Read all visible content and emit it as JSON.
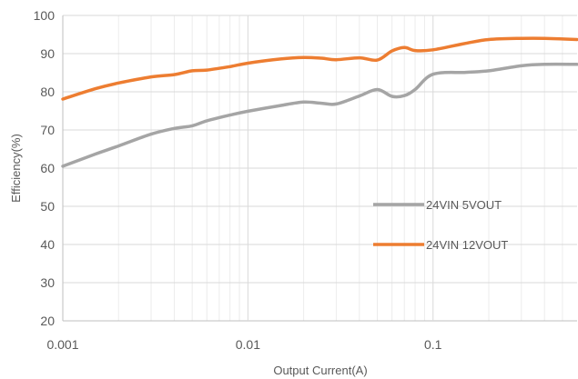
{
  "chart_data": {
    "type": "line",
    "xscale": "log",
    "xlim": [
      0.001,
      0.6
    ],
    "ylim": [
      20,
      100
    ],
    "xticks": [
      "0.001",
      "0.01",
      "0.1"
    ],
    "yticks": [
      "20",
      "30",
      "40",
      "50",
      "60",
      "70",
      "80",
      "90",
      "100"
    ],
    "xlabel": "Output Current(A)",
    "ylabel": "Efficiency(%)",
    "grid": true,
    "legend_position": "center-right",
    "series": [
      {
        "name": "24VIN 5VOUT",
        "color": "#a5a5a5",
        "x": [
          0.001,
          0.0015,
          0.002,
          0.003,
          0.004,
          0.005,
          0.006,
          0.008,
          0.01,
          0.015,
          0.02,
          0.025,
          0.03,
          0.04,
          0.05,
          0.06,
          0.07,
          0.08,
          0.1,
          0.15,
          0.2,
          0.3,
          0.4,
          0.6
        ],
        "y": [
          60.5,
          63.7,
          65.8,
          68.9,
          70.4,
          71.1,
          72.4,
          73.9,
          74.9,
          76.4,
          77.3,
          77.0,
          76.8,
          78.9,
          80.6,
          78.8,
          79.0,
          80.6,
          84.6,
          85.1,
          85.5,
          86.8,
          87.2,
          87.2
        ]
      },
      {
        "name": "24VIN 12VOUT",
        "color": "#ed7d31",
        "x": [
          0.001,
          0.0015,
          0.002,
          0.003,
          0.004,
          0.005,
          0.006,
          0.008,
          0.01,
          0.015,
          0.02,
          0.025,
          0.03,
          0.04,
          0.05,
          0.06,
          0.07,
          0.08,
          0.1,
          0.15,
          0.2,
          0.3,
          0.4,
          0.6
        ],
        "y": [
          78.1,
          80.8,
          82.3,
          83.9,
          84.5,
          85.5,
          85.7,
          86.6,
          87.5,
          88.6,
          89.0,
          88.8,
          88.4,
          88.9,
          88.3,
          90.7,
          91.6,
          90.8,
          91.0,
          92.7,
          93.7,
          94.0,
          94.0,
          93.7
        ]
      }
    ]
  }
}
